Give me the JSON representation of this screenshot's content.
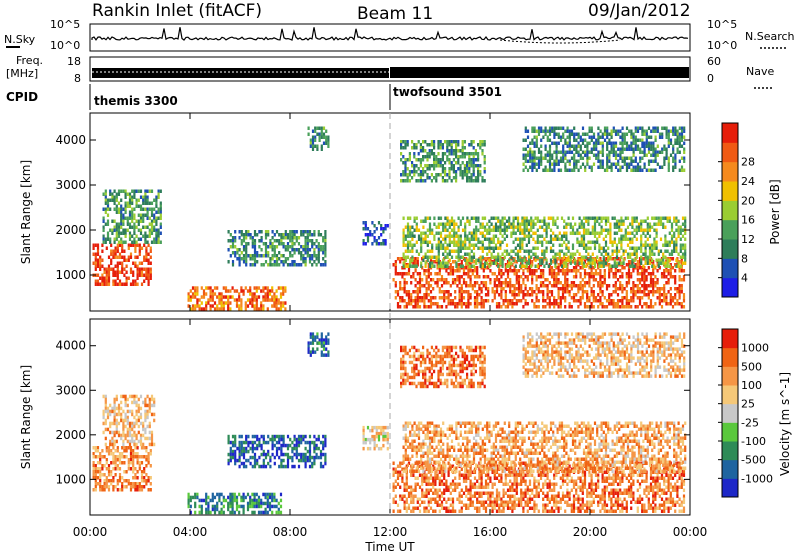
{
  "header": {
    "station": "Rankin Inlet (fitACF)",
    "beam": "Beam 11",
    "date": "09/Jan/2012"
  },
  "noise_panel": {
    "left_label": "N.Sky",
    "right_label": "N.Search",
    "left_ticks": [
      "10^5",
      "10^0"
    ],
    "right_ticks": [
      "10^5",
      "10^0"
    ]
  },
  "freq_panel": {
    "left_label_line1": "Freq.",
    "left_label_line2": "[MHz]",
    "left_ticks": [
      "18",
      "8"
    ],
    "right_label": "Nave",
    "right_ticks": [
      "60",
      "0"
    ]
  },
  "cpid": {
    "label": "CPID",
    "segments": [
      {
        "name": "themis 3300",
        "start_hour": 0,
        "end_hour": 12
      },
      {
        "name": "twofsound 3501",
        "start_hour": 12,
        "end_hour": 24
      }
    ]
  },
  "chart_data": [
    {
      "type": "heatmap",
      "title": "Power",
      "xlabel": "",
      "ylabel": "Slant Range [km]",
      "x_range_hours": [
        0,
        24
      ],
      "ylim": [
        200,
        4600
      ],
      "y_ticks": [
        1000,
        2000,
        3000,
        4000
      ],
      "colorbar": {
        "label": "Power [dB]",
        "ticks": [
          "4",
          "8",
          "12",
          "16",
          "20",
          "24",
          "28"
        ],
        "colors": [
          "#1e1ee6",
          "#1e50b4",
          "#2e7d5a",
          "#4aa05a",
          "#9acd32",
          "#f0c000",
          "#f58a1e",
          "#f05a14",
          "#e61e0a"
        ]
      },
      "regions": [
        {
          "t0": 0.1,
          "t1": 2.4,
          "r0": 800,
          "r1": 1700,
          "level": 0.9
        },
        {
          "t0": 0.5,
          "t1": 2.8,
          "r0": 1700,
          "r1": 2900,
          "level": 0.35
        },
        {
          "t0": 3.9,
          "t1": 7.8,
          "r0": 250,
          "r1": 750,
          "level": 0.8
        },
        {
          "t0": 5.5,
          "t1": 9.4,
          "r0": 1200,
          "r1": 2000,
          "level": 0.3
        },
        {
          "t0": 8.7,
          "t1": 9.5,
          "r0": 3800,
          "r1": 4300,
          "level": 0.3
        },
        {
          "t0": 10.9,
          "t1": 11.9,
          "r0": 1700,
          "r1": 2200,
          "level": 0.15
        },
        {
          "t0": 12.1,
          "t1": 23.8,
          "r0": 300,
          "r1": 1400,
          "level": 0.85
        },
        {
          "t0": 12.5,
          "t1": 23.8,
          "r0": 1200,
          "r1": 2300,
          "level": 0.45
        },
        {
          "t0": 12.4,
          "t1": 15.8,
          "r0": 3100,
          "r1": 4000,
          "level": 0.35
        },
        {
          "t0": 17.3,
          "t1": 23.8,
          "r0": 3300,
          "r1": 4300,
          "level": 0.3
        }
      ]
    },
    {
      "type": "heatmap",
      "title": "Velocity",
      "xlabel": "Time UT",
      "ylabel": "Slant Range [km]",
      "x_range_hours": [
        0,
        24
      ],
      "x_ticks": [
        "00:00",
        "04:00",
        "08:00",
        "12:00",
        "16:00",
        "20:00",
        "00:00"
      ],
      "ylim": [
        200,
        4600
      ],
      "y_ticks": [
        1000,
        2000,
        3000,
        4000
      ],
      "colorbar": {
        "label": "Velocity [m s^-1]",
        "ticks": [
          "1000",
          "500",
          "100",
          "25",
          "-25",
          "-100",
          "-500",
          "-1000"
        ],
        "colors": [
          "#1e28c8",
          "#1e64a0",
          "#2e8b57",
          "#5ac83c",
          "#c8c8c8",
          "#f5c878",
          "#f59646",
          "#f06414",
          "#e61e0a"
        ]
      },
      "regions": [
        {
          "t0": 0.1,
          "t1": 2.4,
          "r0": 800,
          "r1": 1750,
          "level": 0.75
        },
        {
          "t0": 0.5,
          "t1": 2.6,
          "r0": 1800,
          "r1": 2900,
          "level": 0.65
        },
        {
          "t0": 3.9,
          "t1": 7.6,
          "r0": 250,
          "r1": 700,
          "level": 0.25
        },
        {
          "t0": 5.5,
          "t1": 9.4,
          "r0": 1300,
          "r1": 2000,
          "level": 0.15
        },
        {
          "t0": 8.7,
          "t1": 9.5,
          "r0": 3800,
          "r1": 4300,
          "level": 0.2
        },
        {
          "t0": 10.9,
          "t1": 11.9,
          "r0": 1700,
          "r1": 2200,
          "level": 0.6
        },
        {
          "t0": 12.1,
          "t1": 23.8,
          "r0": 300,
          "r1": 1400,
          "level": 0.8
        },
        {
          "t0": 12.5,
          "t1": 23.8,
          "r0": 1200,
          "r1": 2300,
          "level": 0.7
        },
        {
          "t0": 12.4,
          "t1": 15.8,
          "r0": 3100,
          "r1": 4000,
          "level": 0.8
        },
        {
          "t0": 17.3,
          "t1": 23.8,
          "r0": 3300,
          "r1": 4300,
          "level": 0.65
        }
      ]
    }
  ]
}
